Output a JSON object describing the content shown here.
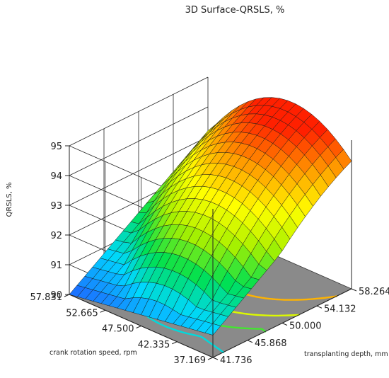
{
  "chart_data": {
    "type": "surface3d",
    "title": "3D Surface-QRSLS, %",
    "zlabel": "QRSLS, %",
    "xlabel": "transplanting depth, mm",
    "ylabel": "crank rotation speed, rpm",
    "x_ticks": [
      "41.736",
      "45.868",
      "50.000",
      "54.132",
      "58.264"
    ],
    "y_ticks": [
      "37.169",
      "42.335",
      "47.500",
      "52.665",
      "57.831"
    ],
    "z_ticks": [
      "90",
      "91",
      "92",
      "93",
      "94",
      "95"
    ],
    "xlim": [
      41.736,
      58.264
    ],
    "ylim": [
      37.169,
      57.831
    ],
    "zlim": [
      90,
      95
    ],
    "surface_corners": [
      {
        "x": 41.736,
        "y": 57.831,
        "z": 90.0
      },
      {
        "x": 58.264,
        "y": 57.831,
        "z": 93.2
      },
      {
        "x": 58.264,
        "y": 37.169,
        "z": 94.05
      },
      {
        "x": 41.736,
        "y": 37.169,
        "z": 90.75
      }
    ],
    "surface_max": {
      "x": 55.5,
      "y": 47.0,
      "z": 94.9
    },
    "contour_levels": [
      91,
      92,
      93,
      94
    ],
    "colormap": [
      "#1e64ff",
      "#00d8ff",
      "#00e050",
      "#a8f000",
      "#ffff00",
      "#ffa000",
      "#ff2000"
    ],
    "floor_color": "#8a8a8a",
    "grid": true
  }
}
